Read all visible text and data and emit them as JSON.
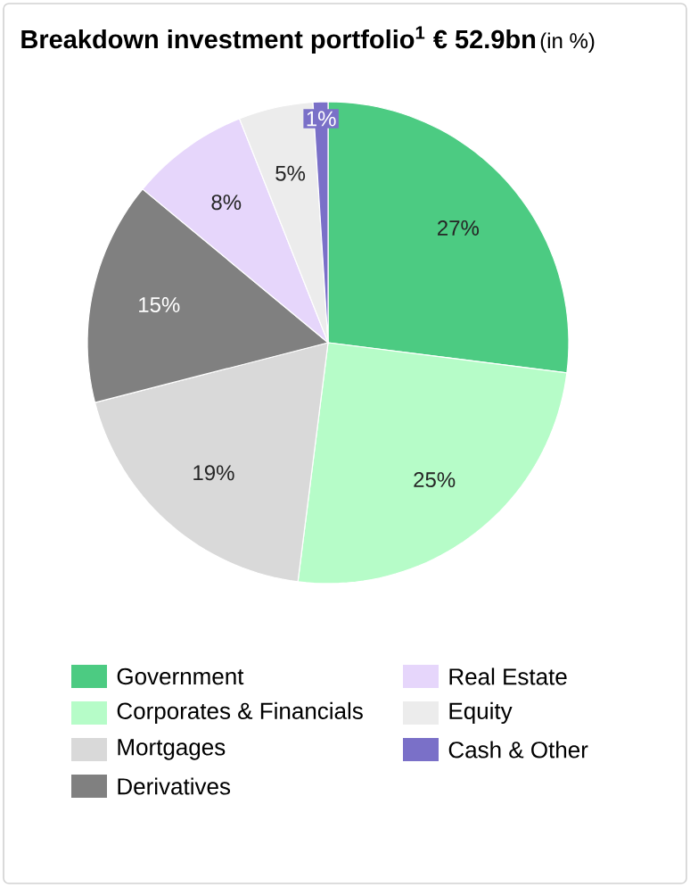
{
  "chart_data": {
    "type": "pie",
    "title": "Breakdown investment portfolio$^{1}$ € 52.9bn",
    "subtitle": "(in %)",
    "categories": [
      "Government",
      "Corporates & Financials",
      "Mortgages",
      "Derivatives",
      "Real Estate",
      "Equity",
      "Cash & Other"
    ],
    "values": [
      27,
      25,
      19,
      15,
      8,
      5,
      1
    ],
    "value_labels": [
      "27%",
      "25%",
      "19%",
      "15%",
      "8%",
      "5%",
      "1%"
    ],
    "colors": [
      "#4ccb82",
      "#b6fcc8",
      "#d9d9d9",
      "#808080",
      "#e6d6fb",
      "#ececec",
      "#7a70c8"
    ],
    "legend": "bottom"
  }
}
